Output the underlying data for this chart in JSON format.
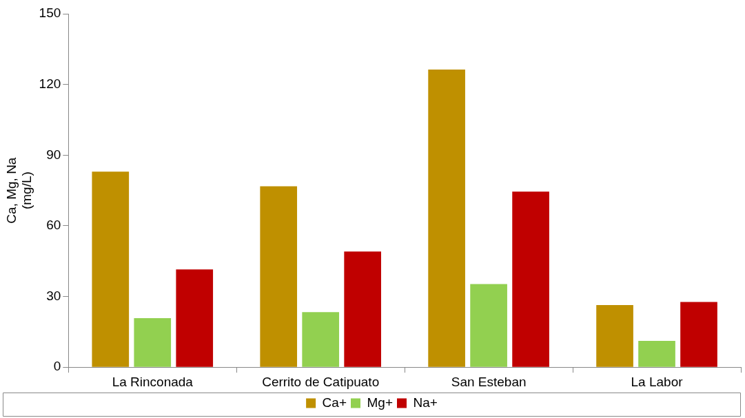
{
  "chart_data": {
    "type": "bar",
    "ylabel": "Ca, Mg, Na\n(mg/L)",
    "categories": [
      "La Rinconada",
      "Cerrito de Catipuato",
      "San Esteban",
      "La Labor"
    ],
    "series": [
      {
        "name": "Ca+",
        "color": "#bf9000",
        "values": [
          83,
          76.8,
          126.3,
          26.4
        ]
      },
      {
        "name": "Mg+",
        "color": "#92d050",
        "values": [
          20.8,
          23.4,
          35.3,
          11.2
        ]
      },
      {
        "name": "Na+",
        "color": "#c00000",
        "values": [
          41.5,
          49.1,
          74.5,
          27.7
        ]
      }
    ],
    "ylim": [
      0,
      150
    ],
    "yticks": [
      0,
      30,
      60,
      90,
      120,
      150
    ],
    "grid": false,
    "legend": "bottom"
  }
}
